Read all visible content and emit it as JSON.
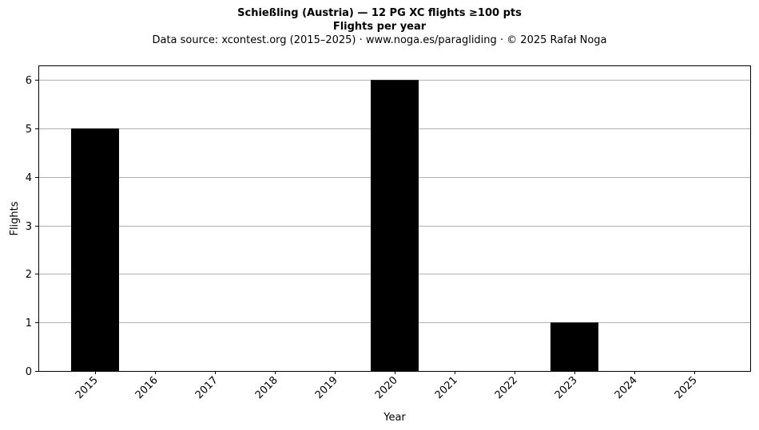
{
  "header": {
    "title": "Schießling (Austria)  —  12 PG XC flights ≥100 pts",
    "subtitle": "Flights per year",
    "source": "Data source: xcontest.org (2015–2025)  ·  www.noga.es/paragliding  ·  © 2025 Rafał Noga"
  },
  "chart_data": {
    "type": "bar",
    "title": "Schießling (Austria)  —  12 PG XC flights ≥100 pts",
    "subtitle": "Flights per year",
    "xlabel": "Year",
    "ylabel": "Flights",
    "categories": [
      "2015",
      "2016",
      "2017",
      "2018",
      "2019",
      "2020",
      "2021",
      "2022",
      "2023",
      "2024",
      "2025"
    ],
    "values": [
      5,
      0,
      0,
      0,
      0,
      6,
      0,
      0,
      1,
      0,
      0
    ],
    "ylim": [
      0,
      6.3
    ],
    "yticks": [
      0,
      1,
      2,
      3,
      4,
      5,
      6
    ],
    "grid": "y-major",
    "bar_color": "#000000",
    "grid_color": "#b0b0b0"
  }
}
